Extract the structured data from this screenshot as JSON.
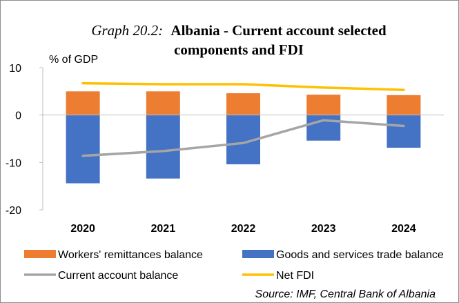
{
  "chart_data": {
    "type": "bar",
    "title_prefix": "Graph 20.2:",
    "title_line1": "Albania - Current account selected",
    "title_line2": "components and FDI",
    "ylabel": "% of GDP",
    "ylim": [
      -20,
      10
    ],
    "yticks": [
      10,
      0,
      -10,
      -20
    ],
    "categories": [
      "2020",
      "2021",
      "2022",
      "2023",
      "2024"
    ],
    "stacked": true,
    "series": [
      {
        "name": "Workers' remittances balance",
        "kind": "bar",
        "color": "#ed7d31",
        "values": [
          5.0,
          5.0,
          4.6,
          4.3,
          4.2
        ]
      },
      {
        "name": "Goods and services trade balance",
        "kind": "bar",
        "color": "#4472c4",
        "values": [
          -14.4,
          -13.4,
          -10.4,
          -5.4,
          -6.9
        ]
      },
      {
        "name": "Current account balance",
        "kind": "line",
        "color": "#a5a5a5",
        "values": [
          -8.6,
          -7.6,
          -5.9,
          -1.1,
          -2.3
        ]
      },
      {
        "name": "Net FDI",
        "kind": "line",
        "color": "#ffc000",
        "values": [
          6.7,
          6.5,
          6.5,
          5.8,
          5.3
        ]
      }
    ],
    "legend_position": "bottom",
    "grid": false,
    "source": "Source: IMF, Central Bank of Albania"
  }
}
